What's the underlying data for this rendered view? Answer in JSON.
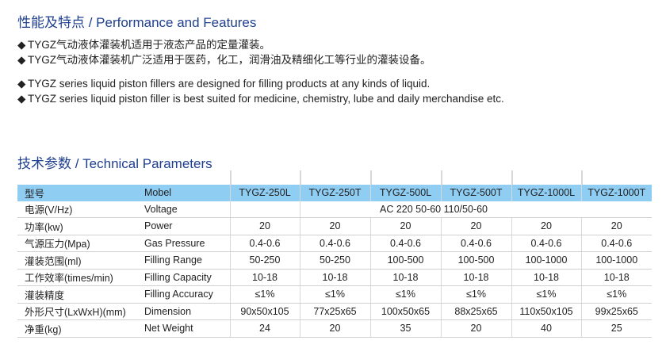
{
  "features": {
    "title": "性能及特点 / Performance and Features",
    "bullet": "◆",
    "items": [
      "TYGZ气动液体灌装机适用于液态产品的定量灌装。",
      "TYGZ气动液体灌装机广泛适用于医药，化工，润滑油及精细化工等行业的灌装设备。",
      "TYGZ series liquid piston fillers are designed for filling products at any kinds of liquid.",
      "TYGZ series liquid piston filler is best suited for medicine, chemistry, lube and daily merchandise etc."
    ]
  },
  "params": {
    "title": "技术参数 / Technical Parameters",
    "header": [
      "型号",
      "Mobel",
      "TYGZ-250L",
      "TYGZ-250T",
      "TYGZ-500L",
      "TYGZ-500T",
      "TYGZ-1000L",
      "TYGZ-1000T"
    ],
    "voltage": {
      "cn": "电源(V/Hz)",
      "en": "Voltage",
      "value": "AC 220  50-60  110/50-60"
    },
    "rows": [
      {
        "cn": "功率(kw)",
        "en": "Power",
        "v": [
          "20",
          "20",
          "20",
          "20",
          "20",
          "20"
        ]
      },
      {
        "cn": "气源压力(Mpa)",
        "en": "Gas Pressure",
        "v": [
          "0.4-0.6",
          "0.4-0.6",
          "0.4-0.6",
          "0.4-0.6",
          "0.4-0.6",
          "0.4-0.6"
        ]
      },
      {
        "cn": "灌装范围(ml)",
        "en": "Filling Range",
        "v": [
          "50-250",
          "50-250",
          "100-500",
          "100-500",
          "100-1000",
          "100-1000"
        ]
      },
      {
        "cn": "工作效率(times/min)",
        "en": "Filling Capacity",
        "v": [
          "10-18",
          "10-18",
          "10-18",
          "10-18",
          "10-18",
          "10-18"
        ]
      },
      {
        "cn": "灌装精度",
        "en": "Filling Accuracy",
        "v": [
          "≤1%",
          "≤1%",
          "≤1%",
          "≤1%",
          "≤1%",
          "≤1%"
        ]
      },
      {
        "cn": "外形尺寸(LxWxH)(mm)",
        "en": "Dimension",
        "v": [
          "90x50x105",
          "77x25x65",
          "100x50x65",
          "88x25x65",
          "110x50x105",
          "99x25x65"
        ]
      },
      {
        "cn": "净重(kg)",
        "en": "Net Weight",
        "v": [
          "24",
          "20",
          "35",
          "20",
          "40",
          "25"
        ]
      }
    ]
  },
  "colors": {
    "heading": "#1f3f8f",
    "header_bg": "#8fcdf2"
  }
}
